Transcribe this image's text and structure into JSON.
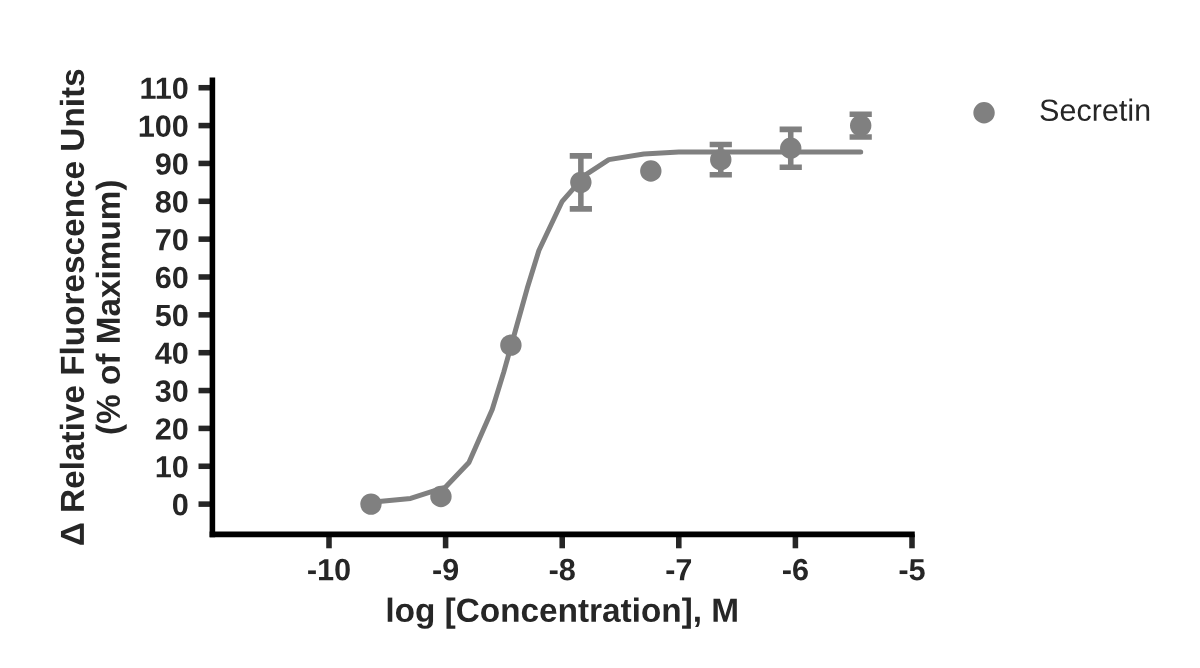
{
  "chart_data": {
    "type": "scatter",
    "xlabel": "log [Concentration], M",
    "ylabel": "Δ Relative Fluorescence Units\n(% of Maximum)",
    "xlim": [
      -11,
      -5
    ],
    "xticks": [
      -10,
      -9,
      -8,
      -7,
      -6,
      -5
    ],
    "ylim": [
      -8,
      112
    ],
    "yticks": [
      0,
      10,
      20,
      30,
      40,
      50,
      60,
      70,
      80,
      90,
      100,
      110
    ],
    "grid": false,
    "legend": "top right",
    "series": [
      {
        "name": "Secretin",
        "color": "#808080",
        "marker": "circle",
        "x": [
          -9.64,
          -9.04,
          -8.44,
          -7.84,
          -7.24,
          -6.64,
          -6.04,
          -5.44
        ],
        "values": [
          0,
          2,
          42,
          85,
          88,
          91,
          94,
          100
        ],
        "errors": [
          null,
          null,
          null,
          7,
          null,
          4,
          5,
          3
        ]
      },
      {
        "type": "line",
        "color": "#808080",
        "marker": "none",
        "x": [
          -9.64,
          -9.3,
          -9.0,
          -8.8,
          -8.6,
          -8.5,
          -8.4,
          -8.3,
          -8.2,
          -8.0,
          -7.8,
          -7.6,
          -7.3,
          -7.0,
          -6.0,
          -5.44
        ],
        "values": [
          0.5,
          1.5,
          4.5,
          11,
          25,
          35,
          46,
          57,
          67,
          80,
          87,
          91,
          92.5,
          93,
          93,
          93
        ]
      }
    ]
  }
}
